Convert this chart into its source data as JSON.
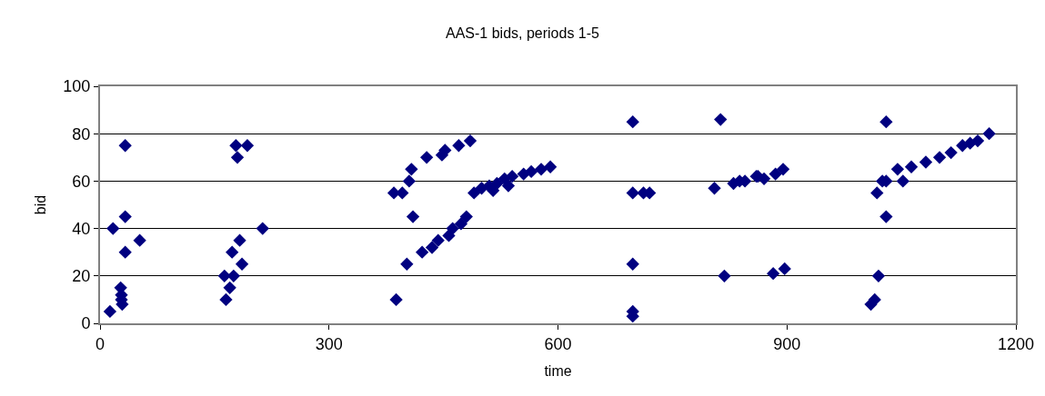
{
  "chart_data": {
    "type": "scatter",
    "title": "AAS-1 bids, periods 1-5",
    "xlabel": "time",
    "ylabel": "bid",
    "x": [
      13,
      17,
      27,
      28,
      28,
      29,
      33,
      33,
      33,
      52,
      163,
      165,
      170,
      173,
      175,
      178,
      180,
      183,
      186,
      193,
      213,
      385,
      388,
      396,
      402,
      405,
      408,
      410,
      422,
      428,
      435,
      443,
      448,
      452,
      457,
      462,
      470,
      473,
      480,
      485,
      490,
      500,
      510,
      515,
      520,
      530,
      535,
      540,
      555,
      565,
      578,
      590,
      698,
      698,
      698,
      698,
      698,
      712,
      720,
      805,
      813,
      818,
      830,
      838,
      845,
      860,
      862,
      870,
      882,
      885,
      895,
      897,
      1010,
      1015,
      1018,
      1020,
      1025,
      1030,
      1030,
      1030,
      1045,
      1052,
      1063,
      1082,
      1100,
      1115,
      1130,
      1140,
      1150,
      1165
    ],
    "values": [
      5,
      40,
      15,
      12,
      10,
      8,
      75,
      45,
      30,
      35,
      20,
      10,
      15,
      30,
      20,
      75,
      70,
      35,
      25,
      75,
      40,
      55,
      10,
      55,
      25,
      60,
      65,
      45,
      30,
      70,
      32,
      35,
      71,
      73,
      37,
      40,
      75,
      42,
      45,
      77,
      55,
      57,
      58,
      56,
      59,
      61,
      58,
      62,
      63,
      64,
      65,
      66,
      85,
      55,
      25,
      5,
      3,
      55,
      55,
      57,
      86,
      20,
      59,
      60,
      60,
      62,
      62,
      61,
      21,
      63,
      65,
      23,
      8,
      10,
      55,
      20,
      60,
      60,
      85,
      45,
      65,
      60,
      66,
      68,
      70,
      72,
      75,
      76,
      77,
      80
    ],
    "color": "#000080",
    "marker": "diamond",
    "xlim": [
      0,
      1200
    ],
    "ylim": [
      0,
      100
    ],
    "xticks": [
      0,
      300,
      600,
      900,
      1200
    ],
    "yticks": [
      0,
      20,
      40,
      60,
      80,
      100
    ],
    "grid": "y",
    "legend": false
  }
}
